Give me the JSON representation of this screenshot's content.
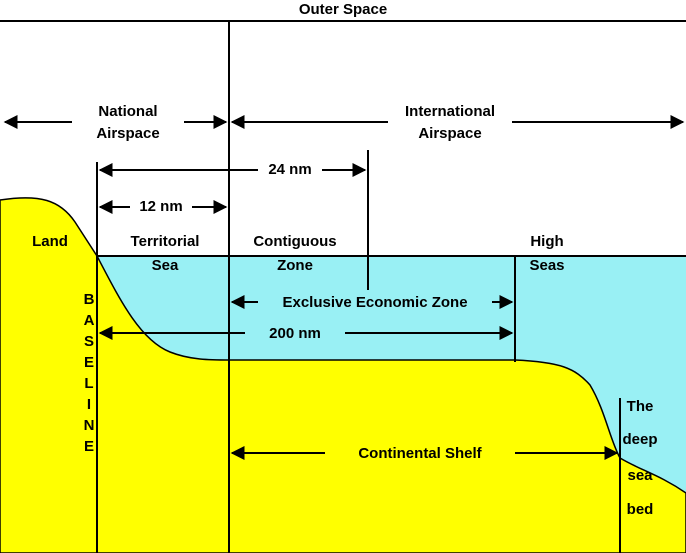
{
  "title": "Outer Space",
  "labels": {
    "national_airspace": [
      "National",
      "Airspace"
    ],
    "international_airspace": [
      "International",
      "Airspace"
    ],
    "nm24": "24 nm",
    "nm12": "12 nm",
    "land": "Land",
    "territorial_sea": [
      "Territorial",
      "Sea"
    ],
    "contiguous_zone": [
      "Contiguous",
      "Zone"
    ],
    "high_seas": [
      "High",
      "Seas"
    ],
    "eez": "Exclusive Economic Zone",
    "nm200": "200 nm",
    "baseline": [
      "B",
      "A",
      "S",
      "E",
      "L",
      "I",
      "N",
      "E"
    ],
    "deep_sea_bed": [
      "The",
      "deep",
      "sea",
      "bed"
    ],
    "continental_shelf": "Continental Shelf"
  }
}
